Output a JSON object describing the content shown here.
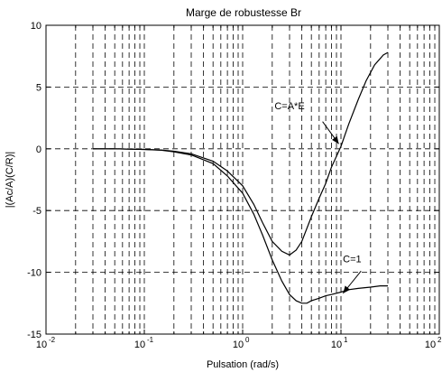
{
  "chart_data": {
    "type": "line",
    "title": "Marge de robustesse Br",
    "xlabel": "Pulsation (rad/s)",
    "ylabel": "|(Ac/A)(C/R)|",
    "xscale": "log",
    "xlim": [
      0.01,
      100
    ],
    "ylim": [
      -15,
      10
    ],
    "grid": true,
    "x_ticks": [
      0.01,
      0.1,
      1,
      10,
      100
    ],
    "x_tick_labels": [
      {
        "base": "10",
        "exp": "-2"
      },
      {
        "base": "10",
        "exp": "-1"
      },
      {
        "base": "10",
        "exp": "0"
      },
      {
        "base": "10",
        "exp": "1"
      },
      {
        "base": "10",
        "exp": "2"
      }
    ],
    "y_ticks": [
      -15,
      -10,
      -5,
      0,
      5,
      10
    ],
    "y_tick_labels": [
      "-15",
      "-10",
      "-5",
      "0",
      "5",
      "10"
    ],
    "series": [
      {
        "name": "C=A*E",
        "x": [
          0.03,
          0.05,
          0.1,
          0.15,
          0.2,
          0.3,
          0.5,
          0.7,
          1.0,
          1.3,
          1.6,
          2.0,
          2.5,
          3.0,
          3.5,
          4.0,
          5.0,
          6.0,
          7.0,
          8.0,
          10.0,
          12.0,
          15.0,
          18.0,
          22.0,
          27.0,
          30.0
        ],
        "y": [
          0,
          0,
          -0.05,
          -0.1,
          -0.2,
          -0.4,
          -1.0,
          -1.8,
          -3.0,
          -4.5,
          -6.0,
          -7.5,
          -8.3,
          -8.6,
          -8.2,
          -7.5,
          -5.5,
          -4.0,
          -2.8,
          -1.5,
          0.2,
          2.0,
          4.0,
          5.5,
          6.8,
          7.6,
          7.8
        ]
      },
      {
        "name": "C=1",
        "x": [
          0.03,
          0.05,
          0.1,
          0.15,
          0.2,
          0.3,
          0.5,
          0.7,
          1.0,
          1.3,
          1.6,
          2.0,
          2.5,
          3.0,
          3.5,
          4.0,
          4.5,
          5.0,
          6.0,
          7.0,
          8.0,
          10.0,
          12.0,
          15.0,
          20.0,
          25.0,
          30.0
        ],
        "y": [
          0,
          0,
          -0.05,
          -0.12,
          -0.25,
          -0.5,
          -1.2,
          -2.2,
          -3.6,
          -5.3,
          -7.0,
          -9.0,
          -10.7,
          -11.8,
          -12.3,
          -12.5,
          -12.5,
          -12.3,
          -12.1,
          -11.9,
          -11.8,
          -11.6,
          -11.4,
          -11.3,
          -11.2,
          -11.1,
          -11.1
        ]
      }
    ],
    "annotations": [
      {
        "text": "C=A*E",
        "label_at": [
          3.0,
          3.2
        ],
        "arrow_from": [
          6.5,
          2.2
        ],
        "arrow_to": [
          9.5,
          0.4
        ]
      },
      {
        "text": "C=1",
        "label_at": [
          13.0,
          -9.2
        ],
        "arrow_from": [
          16.0,
          -9.9
        ],
        "arrow_to": [
          10.5,
          -11.7
        ]
      }
    ]
  }
}
